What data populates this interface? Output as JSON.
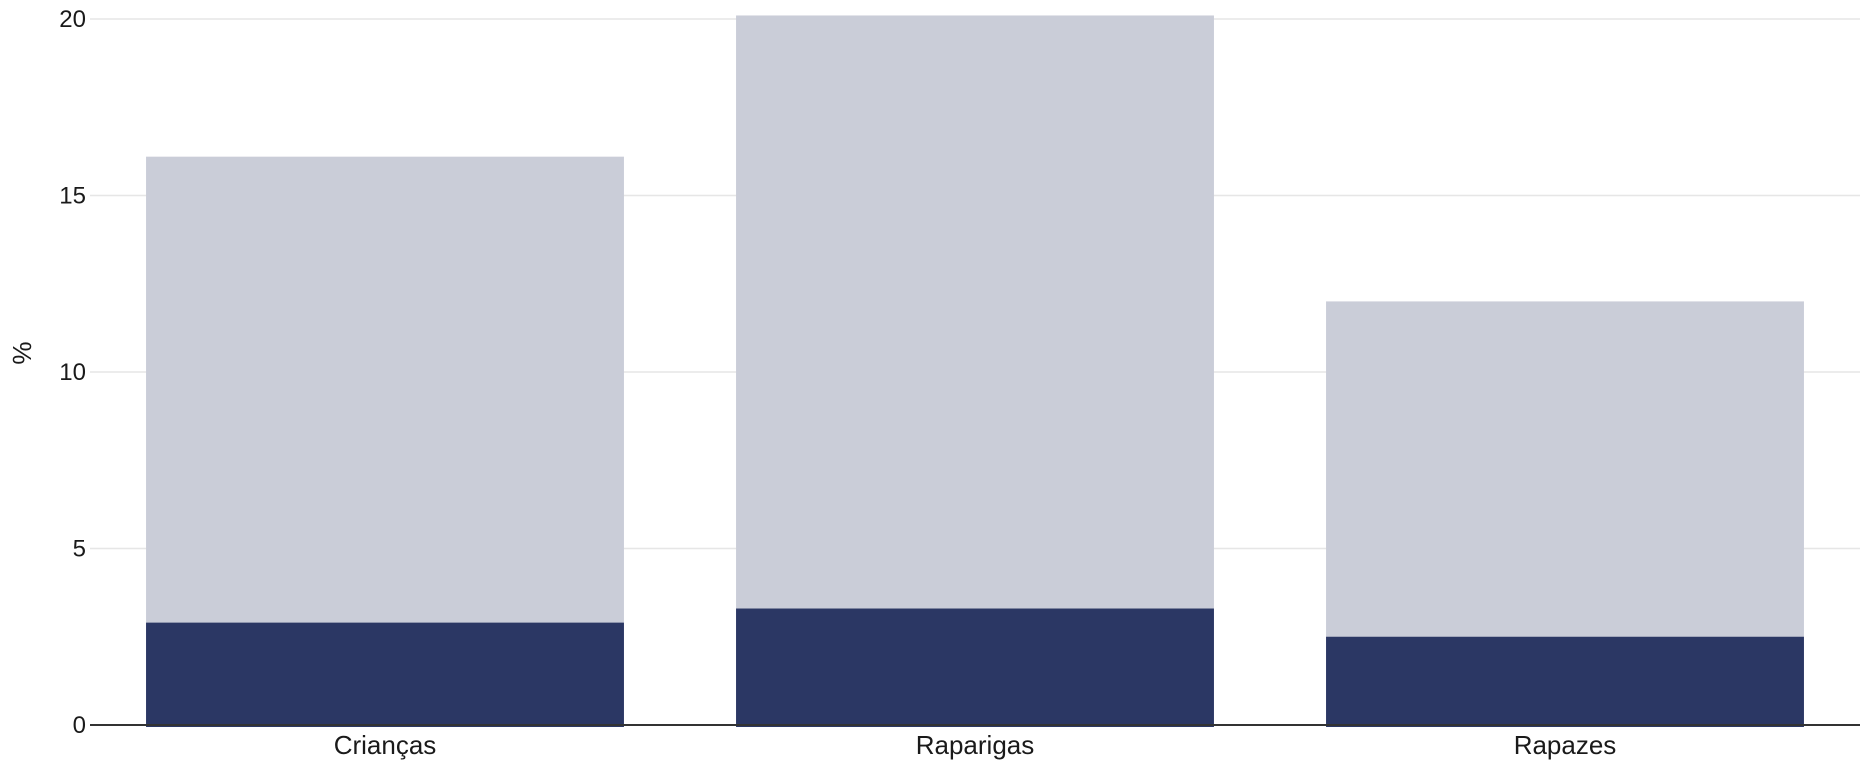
{
  "chart_data": {
    "type": "bar",
    "stacked": false,
    "overlay": true,
    "title": "",
    "xlabel": "",
    "ylabel": "%",
    "ylim": [
      0,
      20
    ],
    "yticks": [
      "0",
      "5",
      "10",
      "15",
      "20"
    ],
    "grid": true,
    "legend": "none",
    "categories": [
      "Crianças",
      "Raparigas",
      "Rapazes"
    ],
    "series": [
      {
        "values": [
          16.1,
          20.1,
          12.0
        ],
        "color": "#cacdd8"
      },
      {
        "values": [
          2.9,
          3.3,
          2.5
        ],
        "color": "#2b3764"
      }
    ]
  }
}
